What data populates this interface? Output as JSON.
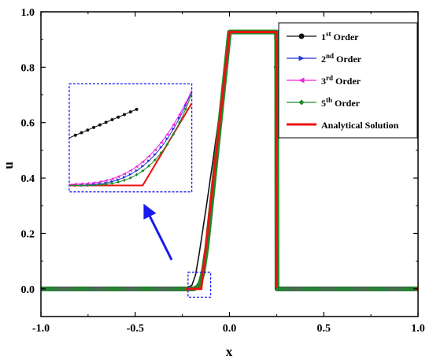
{
  "chart_data": {
    "type": "line",
    "xlabel": "x",
    "ylabel": "u",
    "xlim": [
      -1.0,
      1.0
    ],
    "ylim": [
      -0.1,
      1.0
    ],
    "x_ticks": [
      "-1.0",
      "-0.5",
      "0.0",
      "0.5",
      "1.0"
    ],
    "y_ticks": [
      "0.0",
      "0.2",
      "0.4",
      "0.6",
      "0.8",
      "1.0"
    ],
    "x_tick_values": [
      -1.0,
      -0.5,
      0.0,
      0.5,
      1.0
    ],
    "y_tick_values": [
      0.0,
      0.2,
      0.4,
      0.6,
      0.8,
      1.0
    ],
    "legend_position": "top-right",
    "series": [
      {
        "name": "1st Order",
        "label_main": "1",
        "label_sup": "st",
        "label_tail": " Order",
        "color": "#111111",
        "marker": "circle",
        "x": [
          -1.0,
          -0.25,
          -0.2,
          -0.18,
          -0.16,
          -0.14,
          -0.12,
          -0.08,
          -0.04,
          -0.01,
          0.0,
          0.24,
          0.245,
          0.25,
          0.255,
          0.26,
          1.0
        ],
        "y": [
          0.0,
          0.0,
          0.012,
          0.05,
          0.13,
          0.22,
          0.31,
          0.5,
          0.7,
          0.88,
          0.927,
          0.927,
          0.8,
          0.3,
          0.05,
          0.0,
          0.0
        ]
      },
      {
        "name": "2nd Order",
        "label_main": "2",
        "label_sup": "nd",
        "label_tail": " Order",
        "color": "#2233dd",
        "marker": "triangle-right",
        "x": [
          -1.0,
          -0.19,
          -0.17,
          -0.155,
          -0.14,
          -0.12,
          0.0,
          0.25,
          0.252,
          1.0
        ],
        "y": [
          0.0,
          0.0,
          0.01,
          0.03,
          0.07,
          0.16,
          0.927,
          0.927,
          0.0,
          0.0
        ]
      },
      {
        "name": "3rd Order",
        "label_main": "3",
        "label_sup": "rd",
        "label_tail": " Order",
        "color": "#ee22dd",
        "marker": "triangle-left",
        "x": [
          -1.0,
          -0.19,
          -0.17,
          -0.155,
          -0.14,
          -0.12,
          0.0,
          0.25,
          0.252,
          1.0
        ],
        "y": [
          0.0,
          0.0,
          0.013,
          0.035,
          0.075,
          0.165,
          0.927,
          0.927,
          0.0,
          0.0
        ]
      },
      {
        "name": "5th Order",
        "label_main": "5",
        "label_sup": "th",
        "label_tail": " Order",
        "color": "#1d8a2a",
        "marker": "diamond",
        "x": [
          -1.0,
          -0.19,
          -0.17,
          -0.155,
          -0.14,
          -0.12,
          0.0,
          0.25,
          0.252,
          1.0
        ],
        "y": [
          0.0,
          0.0,
          0.006,
          0.022,
          0.06,
          0.15,
          0.927,
          0.927,
          0.0,
          0.0
        ]
      },
      {
        "name": "Analytical Solution",
        "label_main": "Analytical Solution",
        "label_sup": "",
        "label_tail": "",
        "color": "#ee1111",
        "marker": "none",
        "x": [
          -1.0,
          -0.15,
          0.0,
          0.25,
          0.25,
          1.0
        ],
        "y": [
          0.0,
          0.0,
          0.927,
          0.927,
          0.0,
          0.0
        ]
      }
    ],
    "zoom_box": {
      "x0": -0.22,
      "x1": -0.1,
      "y0": -0.03,
      "y1": 0.06
    },
    "inset": {
      "x0": -0.85,
      "x1": -0.2,
      "y0": 0.35,
      "y1": 0.74
    }
  }
}
